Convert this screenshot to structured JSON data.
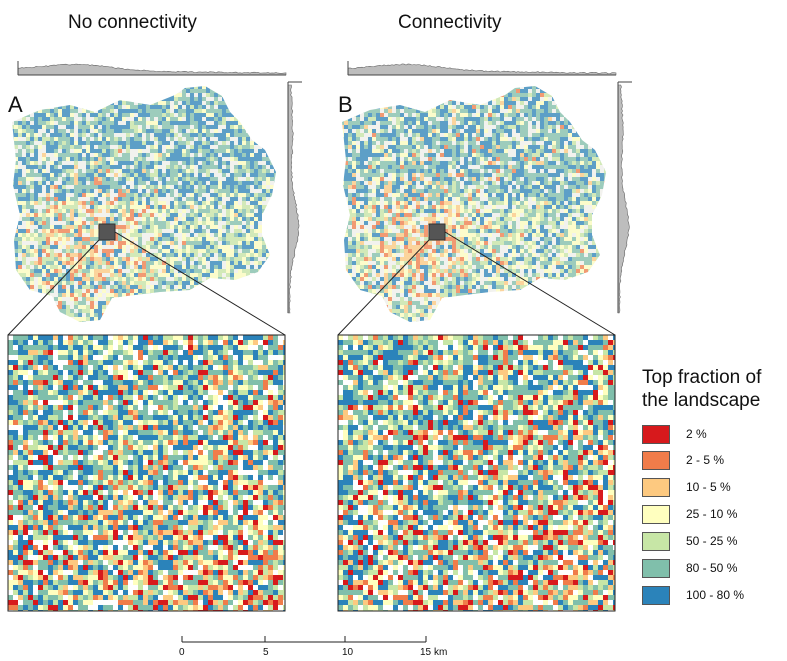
{
  "panels": [
    {
      "title": "No connectivity",
      "letter": "A"
    },
    {
      "title": "Connectivity",
      "letter": "B"
    }
  ],
  "legend": {
    "title_line1": "Top fraction of",
    "title_line2": "the landscape",
    "items": [
      {
        "label": "2 %",
        "color": "#d7191c"
      },
      {
        "label": "2 - 5 %",
        "color": "#f07c4a"
      },
      {
        "label": "10 - 5 %",
        "color": "#fdc980"
      },
      {
        "label": "25 - 10 %",
        "color": "#ffffbf"
      },
      {
        "label": "50 - 25 %",
        "color": "#c7e6a6"
      },
      {
        "label": "80 - 50 %",
        "color": "#80bfab"
      },
      {
        "label": "100 - 80 %",
        "color": "#2b83ba"
      }
    ]
  },
  "scale_bar": {
    "ticks": [
      "0",
      "5",
      "10",
      "15"
    ],
    "unit": "km"
  }
}
